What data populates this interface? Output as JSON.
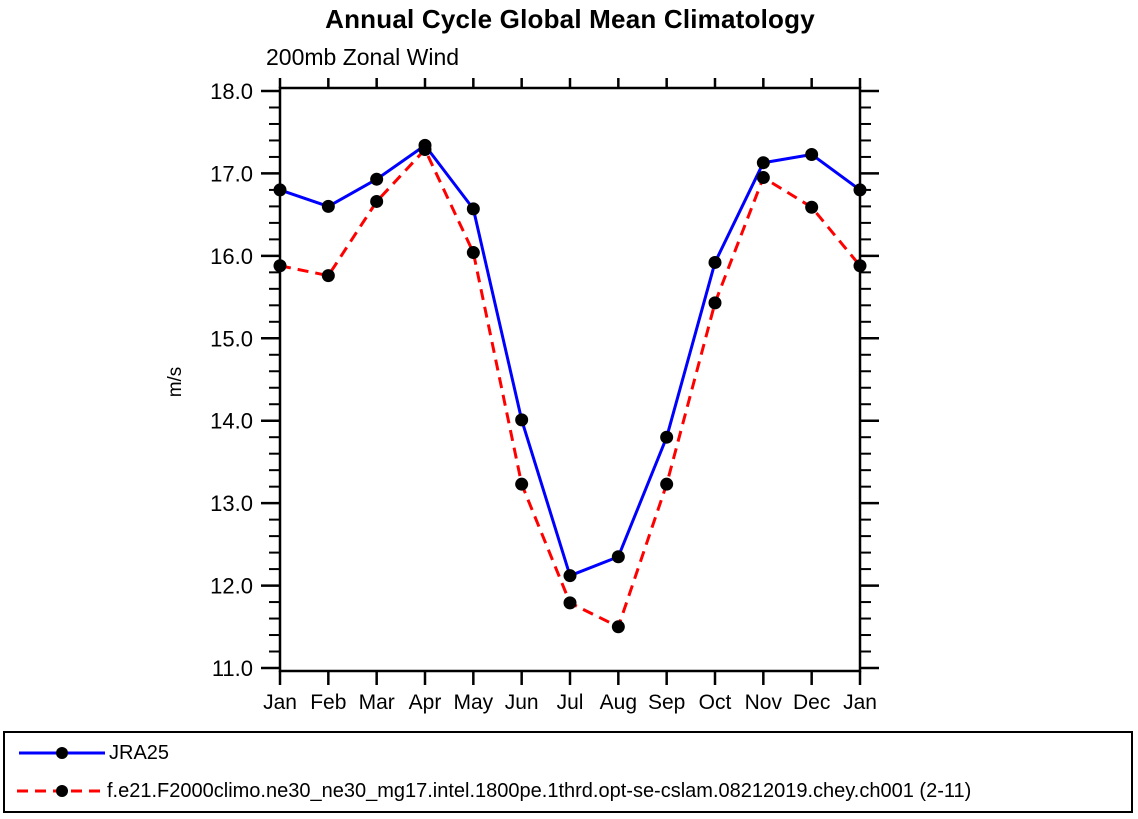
{
  "chart_data": {
    "type": "line",
    "title": "Annual Cycle Global Mean Climatology",
    "subtitle": "200mb Zonal Wind",
    "ylabel": "m/s",
    "xlabel": "",
    "categories": [
      "Jan",
      "Feb",
      "Mar",
      "Apr",
      "May",
      "Jun",
      "Jul",
      "Aug",
      "Sep",
      "Oct",
      "Nov",
      "Dec",
      "Jan"
    ],
    "ylim": [
      11.0,
      18.0
    ],
    "ytick_major_step": 1.0,
    "ytick_minor_step": 0.2,
    "ytick_labels": [
      "11.0",
      "12.0",
      "13.0",
      "14.0",
      "15.0",
      "16.0",
      "17.0",
      "18.0"
    ],
    "grid": false,
    "legend_position": "bottom",
    "frame_color": "#000000",
    "marker_color": "#000000",
    "series": [
      {
        "name": "JRA25",
        "color": "#0000ff",
        "style": "solid",
        "marker": "circle",
        "values": [
          16.8,
          16.6,
          16.93,
          17.34,
          16.57,
          14.01,
          12.12,
          12.35,
          13.8,
          15.92,
          17.13,
          17.23,
          16.8
        ]
      },
      {
        "name": "f.e21.F2000climo.ne30_ne30_mg17.intel.1800pe.1thrd.opt-se-cslam.08212019.chey.ch001 (2-11)",
        "color": "#ff0000",
        "style": "dashed",
        "marker": "circle",
        "values": [
          15.88,
          15.76,
          16.66,
          17.29,
          16.04,
          13.23,
          11.79,
          11.5,
          13.23,
          15.43,
          16.95,
          16.59,
          15.88
        ]
      }
    ]
  }
}
